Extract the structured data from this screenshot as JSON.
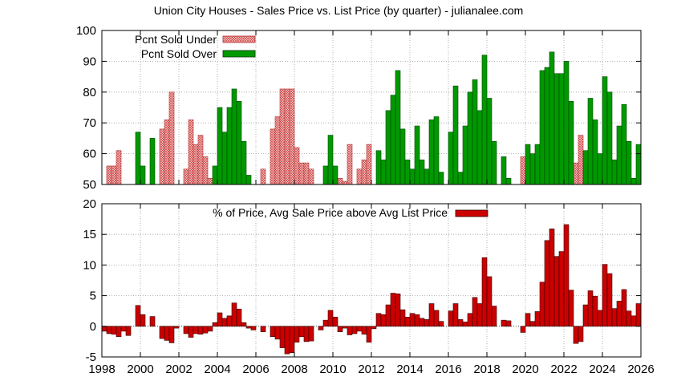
{
  "title": "Union City Houses - Sales Price vs. List Price (by quarter) - julianalee.com",
  "colors": {
    "under_fill": "#f4c6c6",
    "under_stroke": "#cc3333",
    "over_fill": "#009900",
    "diff_fill": "#cc0000",
    "grid": "#a0a0a0"
  },
  "chart_data": [
    {
      "type": "bar",
      "panel": "top",
      "x_unit": "year",
      "xlim": [
        1998,
        2026
      ],
      "ylim": [
        50,
        100
      ],
      "y_ticks": [
        "50",
        "60",
        "70",
        "80",
        "90",
        "100"
      ],
      "grid": true,
      "legend_position": "top-left",
      "series": [
        {
          "name": "Pcnt Sold Under",
          "points": [
            [
              1998.375,
              56
            ],
            [
              1998.625,
              56
            ],
            [
              1998.875,
              61
            ],
            [
              2001.125,
              68
            ],
            [
              2001.375,
              71
            ],
            [
              2001.625,
              80
            ],
            [
              2002.375,
              55
            ],
            [
              2002.625,
              71
            ],
            [
              2002.875,
              63
            ],
            [
              2003.125,
              66
            ],
            [
              2003.375,
              59
            ],
            [
              2003.625,
              52
            ],
            [
              2006.375,
              55
            ],
            [
              2006.875,
              68
            ],
            [
              2007.125,
              72
            ],
            [
              2007.375,
              81
            ],
            [
              2007.625,
              81
            ],
            [
              2007.875,
              81
            ],
            [
              2008.125,
              62
            ],
            [
              2008.375,
              57
            ],
            [
              2008.625,
              57
            ],
            [
              2008.875,
              55
            ],
            [
              2010.375,
              52
            ],
            [
              2010.625,
              51
            ],
            [
              2010.875,
              63
            ],
            [
              2011.375,
              55
            ],
            [
              2011.625,
              58
            ],
            [
              2011.875,
              63
            ],
            [
              2019.875,
              59
            ],
            [
              2022.625,
              57
            ],
            [
              2022.875,
              66
            ]
          ]
        },
        {
          "name": "Pcnt Sold Over",
          "points": [
            [
              1999.875,
              67
            ],
            [
              2000.125,
              56
            ],
            [
              2000.625,
              65
            ],
            [
              2003.875,
              56
            ],
            [
              2004.125,
              75
            ],
            [
              2004.375,
              67
            ],
            [
              2004.625,
              75
            ],
            [
              2004.875,
              81
            ],
            [
              2005.125,
              77
            ],
            [
              2005.375,
              64
            ],
            [
              2005.625,
              53
            ],
            [
              2009.625,
              56
            ],
            [
              2009.875,
              66
            ],
            [
              2010.125,
              56
            ],
            [
              2012.375,
              61
            ],
            [
              2012.625,
              58
            ],
            [
              2012.875,
              74
            ],
            [
              2013.125,
              79
            ],
            [
              2013.375,
              87
            ],
            [
              2013.625,
              68
            ],
            [
              2013.875,
              58
            ],
            [
              2014.125,
              55
            ],
            [
              2014.375,
              69
            ],
            [
              2014.625,
              58
            ],
            [
              2014.875,
              55
            ],
            [
              2015.125,
              71
            ],
            [
              2015.375,
              72
            ],
            [
              2015.625,
              54
            ],
            [
              2016.125,
              67
            ],
            [
              2016.375,
              82
            ],
            [
              2016.625,
              54
            ],
            [
              2016.875,
              69
            ],
            [
              2017.125,
              80
            ],
            [
              2017.375,
              84
            ],
            [
              2017.625,
              74
            ],
            [
              2017.875,
              92
            ],
            [
              2018.125,
              78
            ],
            [
              2018.375,
              64
            ],
            [
              2018.875,
              59
            ],
            [
              2019.125,
              52
            ],
            [
              2020.125,
              63
            ],
            [
              2020.375,
              60
            ],
            [
              2020.625,
              63
            ],
            [
              2020.875,
              87
            ],
            [
              2021.125,
              88
            ],
            [
              2021.375,
              93
            ],
            [
              2021.625,
              86
            ],
            [
              2021.875,
              86
            ],
            [
              2022.125,
              90
            ],
            [
              2022.375,
              77
            ],
            [
              2023.125,
              61
            ],
            [
              2023.375,
              78
            ],
            [
              2023.625,
              71
            ],
            [
              2023.875,
              60
            ],
            [
              2024.125,
              85
            ],
            [
              2024.375,
              80
            ],
            [
              2024.625,
              58
            ],
            [
              2024.875,
              69
            ],
            [
              2025.125,
              76
            ],
            [
              2025.375,
              64
            ],
            [
              2025.625,
              52
            ],
            [
              2025.875,
              63
            ]
          ]
        }
      ]
    },
    {
      "type": "bar",
      "panel": "bottom",
      "x_unit": "year",
      "xlim": [
        1998,
        2026
      ],
      "ylim": [
        -5,
        20
      ],
      "y_ticks": [
        "-5",
        "0",
        "5",
        "10",
        "15",
        "20"
      ],
      "x_ticks": [
        "1998",
        "2000",
        "2002",
        "2004",
        "2006",
        "2008",
        "2010",
        "2012",
        "2014",
        "2016",
        "2018",
        "2020",
        "2022",
        "2024",
        "2026"
      ],
      "grid": true,
      "legend_position": "top-center",
      "series": [
        {
          "name": "% of Price, Avg Sale Price above Avg List Price",
          "points": [
            [
              1998.125,
              -0.8
            ],
            [
              1998.375,
              -1.2
            ],
            [
              1998.625,
              -1.3
            ],
            [
              1998.875,
              -1.7
            ],
            [
              1999.125,
              -0.8
            ],
            [
              1999.375,
              -1.5
            ],
            [
              1999.875,
              3.4
            ],
            [
              2000.125,
              1.9
            ],
            [
              2000.625,
              1.6
            ],
            [
              2001.125,
              -2.0
            ],
            [
              2001.375,
              -2.3
            ],
            [
              2001.625,
              -2.7
            ],
            [
              2001.875,
              -0.3
            ],
            [
              2002.375,
              -1.2
            ],
            [
              2002.625,
              -1.8
            ],
            [
              2002.875,
              -1.2
            ],
            [
              2003.125,
              -1.3
            ],
            [
              2003.375,
              -1.1
            ],
            [
              2003.625,
              -0.8
            ],
            [
              2003.875,
              0.6
            ],
            [
              2004.125,
              2.2
            ],
            [
              2004.375,
              1.3
            ],
            [
              2004.625,
              1.7
            ],
            [
              2004.875,
              3.8
            ],
            [
              2005.125,
              2.8
            ],
            [
              2005.375,
              0.6
            ],
            [
              2005.625,
              -0.3
            ],
            [
              2005.875,
              -0.6
            ],
            [
              2006.375,
              -0.9
            ],
            [
              2006.875,
              -1.7
            ],
            [
              2007.125,
              -2.1
            ],
            [
              2007.375,
              -3.5
            ],
            [
              2007.625,
              -4.5
            ],
            [
              2007.875,
              -4.3
            ],
            [
              2008.125,
              -2.6
            ],
            [
              2008.375,
              -1.7
            ],
            [
              2008.625,
              -2.5
            ],
            [
              2008.875,
              -2.4
            ],
            [
              2009.375,
              -0.6
            ],
            [
              2009.625,
              1.0
            ],
            [
              2009.875,
              2.6
            ],
            [
              2010.125,
              1.5
            ],
            [
              2010.375,
              -0.9
            ],
            [
              2010.625,
              -0.3
            ],
            [
              2010.875,
              -1.4
            ],
            [
              2011.125,
              -1.2
            ],
            [
              2011.375,
              -0.8
            ],
            [
              2011.625,
              -1.3
            ],
            [
              2011.875,
              -2.6
            ],
            [
              2012.125,
              -0.4
            ],
            [
              2012.375,
              2.1
            ],
            [
              2012.625,
              1.9
            ],
            [
              2012.875,
              3.5
            ],
            [
              2013.125,
              5.4
            ],
            [
              2013.375,
              5.3
            ],
            [
              2013.625,
              2.7
            ],
            [
              2013.875,
              1.5
            ],
            [
              2014.125,
              2.1
            ],
            [
              2014.375,
              1.9
            ],
            [
              2014.625,
              1.3
            ],
            [
              2014.875,
              1.1
            ],
            [
              2015.125,
              3.7
            ],
            [
              2015.375,
              2.6
            ],
            [
              2015.625,
              0.8
            ],
            [
              2016.125,
              2.5
            ],
            [
              2016.375,
              3.7
            ],
            [
              2016.625,
              1.1
            ],
            [
              2016.875,
              0.7
            ],
            [
              2017.125,
              2.1
            ],
            [
              2017.375,
              4.7
            ],
            [
              2017.625,
              3.7
            ],
            [
              2017.875,
              11.2
            ],
            [
              2018.125,
              8.1
            ],
            [
              2018.375,
              3.3
            ],
            [
              2018.875,
              1.0
            ],
            [
              2019.125,
              0.9
            ],
            [
              2019.875,
              -1.0
            ],
            [
              2020.125,
              2.1
            ],
            [
              2020.375,
              0.8
            ],
            [
              2020.625,
              2.4
            ],
            [
              2020.875,
              7.2
            ],
            [
              2021.125,
              14.0
            ],
            [
              2021.375,
              15.9
            ],
            [
              2021.625,
              11.4
            ],
            [
              2021.875,
              12.2
            ],
            [
              2022.125,
              16.6
            ],
            [
              2022.375,
              5.9
            ],
            [
              2022.625,
              -2.8
            ],
            [
              2022.875,
              -2.5
            ],
            [
              2023.125,
              3.5
            ],
            [
              2023.375,
              5.8
            ],
            [
              2023.625,
              4.9
            ],
            [
              2023.875,
              2.6
            ],
            [
              2024.125,
              10.1
            ],
            [
              2024.375,
              8.6
            ],
            [
              2024.625,
              2.9
            ],
            [
              2024.875,
              4.1
            ],
            [
              2025.125,
              6.0
            ],
            [
              2025.375,
              2.5
            ],
            [
              2025.625,
              1.7
            ],
            [
              2025.875,
              3.7
            ]
          ]
        }
      ]
    }
  ]
}
